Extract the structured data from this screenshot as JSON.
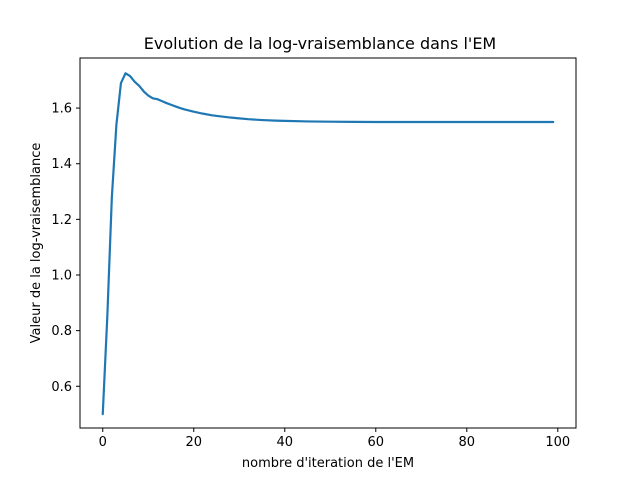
{
  "chart_data": {
    "type": "line",
    "title": "Evolution de la log-vraisemblance dans l'EM",
    "xlabel": "nombre d'iteration de l'EM",
    "ylabel": "Valeur de la log-vraisemblance",
    "xlim": [
      -5,
      104
    ],
    "ylim": [
      0.45,
      1.78
    ],
    "xticks": [
      0,
      20,
      40,
      60,
      80,
      100
    ],
    "yticks": [
      0.6,
      0.8,
      1.0,
      1.2,
      1.4,
      1.6
    ],
    "xtick_labels": [
      "0",
      "20",
      "40",
      "60",
      "80",
      "100"
    ],
    "ytick_labels": [
      "0.6",
      "0.8",
      "1.0",
      "1.2",
      "1.4",
      "1.6"
    ],
    "grid": false,
    "line_color": "#1f77b4",
    "series": [
      {
        "x": [
          0,
          1,
          2,
          3,
          4,
          5,
          6,
          7,
          8,
          9,
          10,
          11,
          12,
          13,
          14,
          15,
          16,
          17,
          18,
          19,
          20,
          22,
          24,
          26,
          28,
          30,
          32,
          35,
          38,
          40,
          45,
          50,
          55,
          60,
          70,
          80,
          90,
          99
        ],
        "y": [
          0.5,
          0.85,
          1.28,
          1.54,
          1.69,
          1.725,
          1.715,
          1.695,
          1.68,
          1.66,
          1.645,
          1.635,
          1.632,
          1.625,
          1.618,
          1.612,
          1.606,
          1.6,
          1.595,
          1.591,
          1.587,
          1.58,
          1.574,
          1.57,
          1.566,
          1.563,
          1.56,
          1.557,
          1.555,
          1.554,
          1.552,
          1.551,
          1.5505,
          1.55,
          1.55,
          1.55,
          1.55,
          1.55
        ]
      }
    ]
  }
}
